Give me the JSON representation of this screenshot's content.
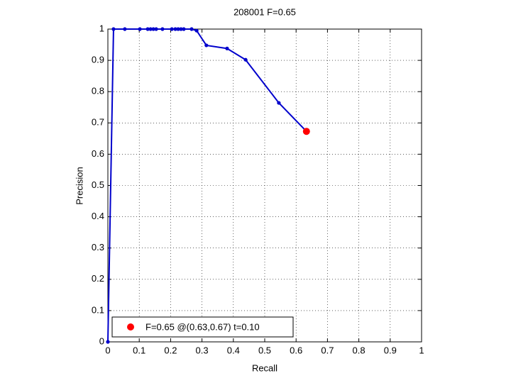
{
  "chart_data": {
    "type": "line",
    "title": "208001 F=0.65",
    "xlabel": "Recall",
    "ylabel": "Precision",
    "xlim": [
      0,
      1
    ],
    "ylim": [
      0,
      1
    ],
    "xticks": [
      0,
      0.1,
      0.2,
      0.3,
      0.4,
      0.5,
      0.6,
      0.7,
      0.8,
      0.9,
      1
    ],
    "yticks": [
      0,
      0.1,
      0.2,
      0.3,
      0.4,
      0.5,
      0.6,
      0.7,
      0.8,
      0.9,
      1
    ],
    "grid": true,
    "legend": "lower left",
    "series": [
      {
        "color": "#0000cc",
        "marker": "small",
        "x": [
          0,
          0.018,
          0.054,
          0.102,
          0.127,
          0.136,
          0.145,
          0.154,
          0.174,
          0.204,
          0.215,
          0.224,
          0.233,
          0.242,
          0.267,
          0.283,
          0.314,
          0.38,
          0.439,
          0.545,
          0.633
        ],
        "values": [
          0,
          1,
          1,
          1,
          1,
          1,
          1,
          1,
          1,
          1,
          1,
          1,
          1,
          1,
          1,
          0.995,
          0.948,
          0.938,
          0.902,
          0.764,
          0.673
        ]
      },
      {
        "name": "F=0.65 @(0.63,0.67) t=0.10",
        "color": "#ff0000",
        "marker": "large",
        "x": [
          0.633
        ],
        "values": [
          0.673
        ]
      }
    ]
  }
}
